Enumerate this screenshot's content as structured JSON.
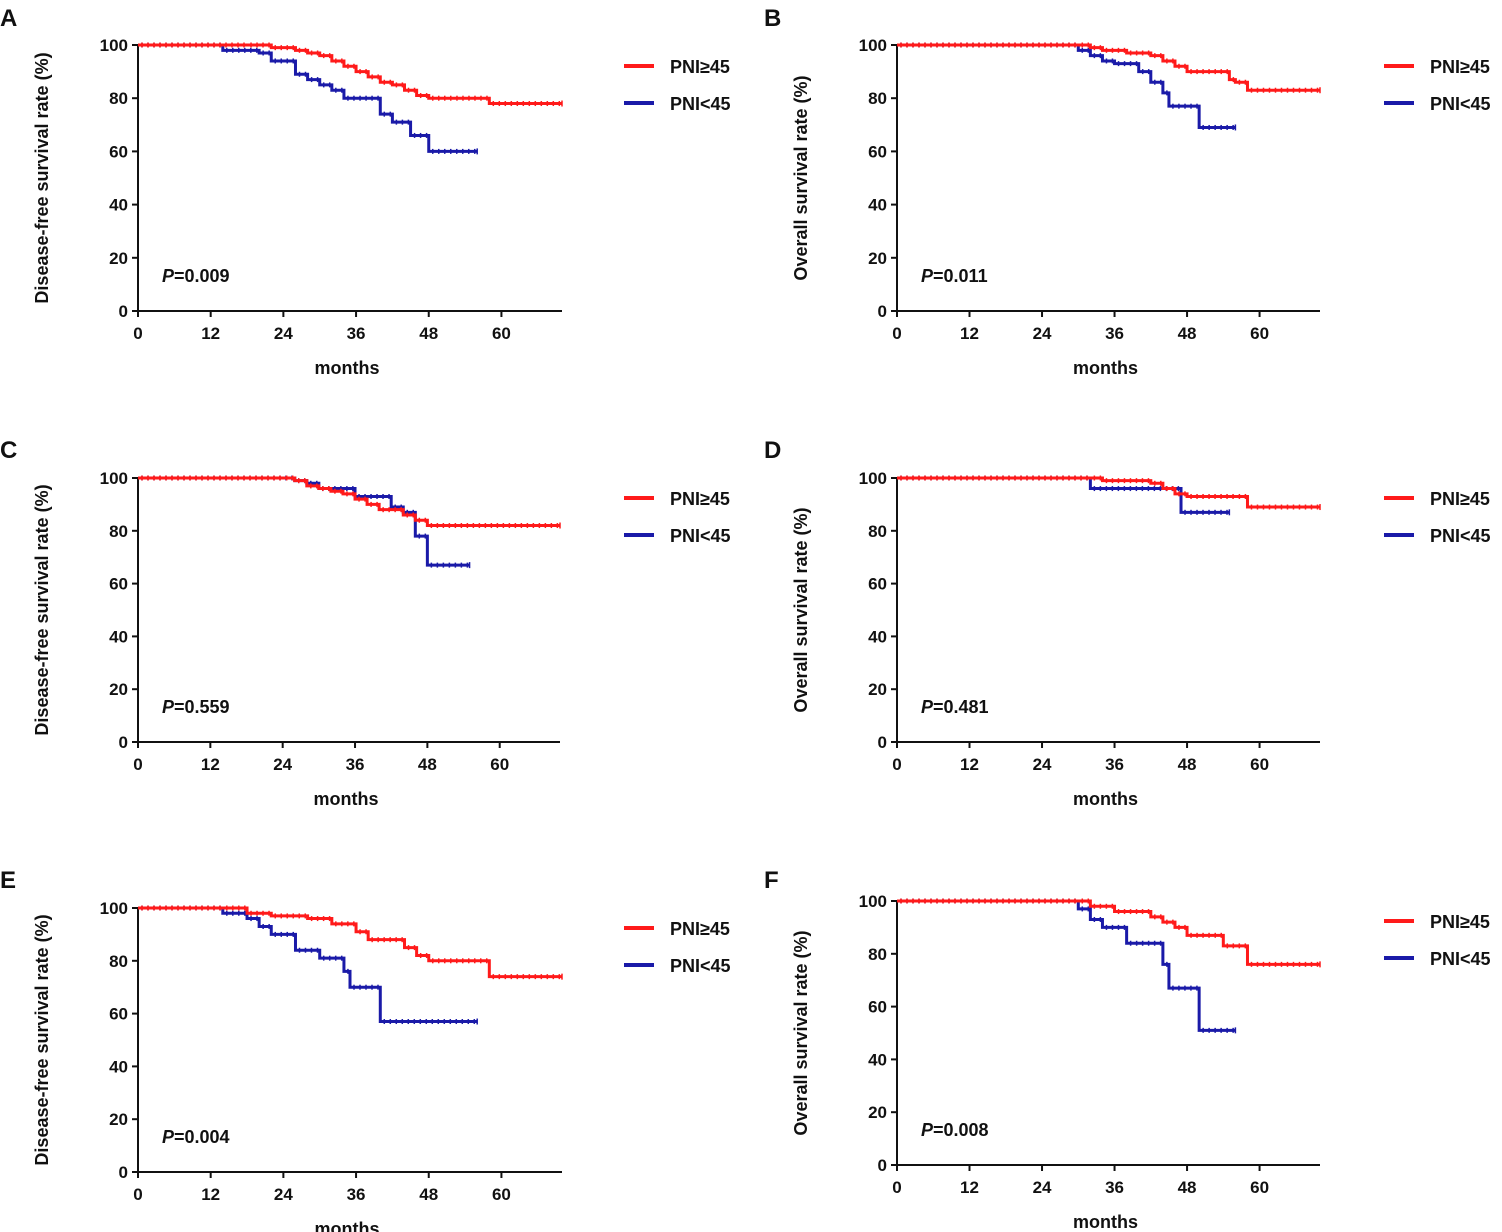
{
  "figure": {
    "panels": [
      "A",
      "B",
      "C",
      "D",
      "E",
      "F"
    ]
  },
  "colors": {
    "high": "#ff1a1a",
    "low": "#1a1aa8",
    "axis": "#111111"
  },
  "chart_data": [
    {
      "panel": "A",
      "type": "line",
      "xlabel": "months",
      "ylabel": "Disease-free survival rate (%)",
      "xlim": [
        0,
        70
      ],
      "ylim": [
        0,
        100
      ],
      "xticks": [
        "0",
        "12",
        "24",
        "36",
        "48",
        "60"
      ],
      "yticks": [
        "0",
        "20",
        "40",
        "60",
        "80",
        "100"
      ],
      "p_value_prefix": "P",
      "p_value_text": "=0.009",
      "legend": [
        "PNI≥45",
        "PNI<45"
      ],
      "series": [
        {
          "name": "PNI≥45",
          "x": [
            0,
            18,
            22,
            26,
            28,
            30,
            32,
            34,
            36,
            38,
            40,
            42,
            44,
            46,
            48,
            52,
            58,
            70
          ],
          "y": [
            100,
            100,
            99,
            98,
            97,
            96,
            94,
            92,
            90,
            88,
            86,
            85,
            83,
            81,
            80,
            80,
            78,
            78
          ]
        },
        {
          "name": "PNI<45",
          "x": [
            0,
            14,
            20,
            22,
            26,
            28,
            30,
            32,
            34,
            36,
            40,
            42,
            45,
            48,
            56
          ],
          "y": [
            100,
            98,
            97,
            94,
            89,
            87,
            85,
            83,
            80,
            80,
            74,
            71,
            66,
            60,
            60
          ]
        }
      ]
    },
    {
      "panel": "B",
      "type": "line",
      "xlabel": "months",
      "ylabel": "Overall survival rate (%)",
      "xlim": [
        0,
        70
      ],
      "ylim": [
        0,
        100
      ],
      "xticks": [
        "0",
        "12",
        "24",
        "36",
        "48",
        "60"
      ],
      "yticks": [
        "0",
        "20",
        "40",
        "60",
        "80",
        "100"
      ],
      "p_value_prefix": "P",
      "p_value_text": "=0.011",
      "legend": [
        "PNI≥45",
        "PNI<45"
      ],
      "series": [
        {
          "name": "PNI≥45",
          "x": [
            0,
            30,
            32,
            34,
            38,
            42,
            44,
            46,
            48,
            52,
            55,
            56,
            58,
            70
          ],
          "y": [
            100,
            100,
            99,
            98,
            97,
            96,
            94,
            92,
            90,
            90,
            87,
            86,
            83,
            83
          ]
        },
        {
          "name": "PNI<45",
          "x": [
            0,
            30,
            32,
            34,
            36,
            40,
            42,
            44,
            45,
            47,
            50,
            56
          ],
          "y": [
            100,
            98,
            96,
            94,
            93,
            90,
            86,
            82,
            77,
            77,
            69,
            69
          ]
        }
      ]
    },
    {
      "panel": "C",
      "type": "line",
      "xlabel": "months",
      "ylabel": "Disease-free survival rate (%)",
      "xlim": [
        0,
        70
      ],
      "ylim": [
        0,
        100
      ],
      "xticks": [
        "0",
        "12",
        "24",
        "36",
        "48",
        "60"
      ],
      "yticks": [
        "0",
        "20",
        "40",
        "60",
        "80",
        "100"
      ],
      "p_value_prefix": "P",
      "p_value_text": "=0.559",
      "legend": [
        "PNI≥45",
        "PNI<45"
      ],
      "series": [
        {
          "name": "PNI≥45",
          "x": [
            0,
            24,
            26,
            28,
            30,
            32,
            34,
            36,
            38,
            40,
            44,
            46,
            48,
            70
          ],
          "y": [
            100,
            100,
            99,
            97,
            96,
            95,
            94,
            92,
            90,
            88,
            86,
            84,
            82,
            82
          ]
        },
        {
          "name": "PNI<45",
          "x": [
            0,
            26,
            28,
            30,
            36,
            42,
            44,
            46,
            48,
            55
          ],
          "y": [
            100,
            99,
            98,
            96,
            93,
            89,
            87,
            78,
            67,
            67
          ]
        }
      ]
    },
    {
      "panel": "D",
      "type": "line",
      "xlabel": "months",
      "ylabel": "Overall survival rate (%)",
      "xlim": [
        0,
        70
      ],
      "ylim": [
        0,
        100
      ],
      "xticks": [
        "0",
        "12",
        "24",
        "36",
        "48",
        "60"
      ],
      "yticks": [
        "0",
        "20",
        "40",
        "60",
        "80",
        "100"
      ],
      "p_value_prefix": "P",
      "p_value_text": "=0.481",
      "legend": [
        "PNI≥45",
        "PNI<45"
      ],
      "series": [
        {
          "name": "PNI≥45",
          "x": [
            0,
            32,
            34,
            42,
            44,
            46,
            48,
            56,
            58,
            70
          ],
          "y": [
            100,
            100,
            99,
            98,
            96,
            94,
            93,
            93,
            89,
            89
          ]
        },
        {
          "name": "PNI<45",
          "x": [
            0,
            32,
            47,
            55
          ],
          "y": [
            100,
            96,
            87,
            87
          ]
        }
      ]
    },
    {
      "panel": "E",
      "type": "line",
      "xlabel": "months",
      "ylabel": "Disease-free survival rate (%)",
      "xlim": [
        0,
        70
      ],
      "ylim": [
        0,
        100
      ],
      "xticks": [
        "0",
        "12",
        "24",
        "36",
        "48",
        "60"
      ],
      "yticks": [
        "0",
        "20",
        "40",
        "60",
        "80",
        "100"
      ],
      "p_value_prefix": "P",
      "p_value_text": "=0.004",
      "legend": [
        "PNI≥45",
        "PNI<45"
      ],
      "series": [
        {
          "name": "PNI≥45",
          "x": [
            0,
            14,
            18,
            22,
            28,
            32,
            36,
            38,
            44,
            46,
            48,
            58,
            70
          ],
          "y": [
            100,
            100,
            98,
            97,
            96,
            94,
            91,
            88,
            85,
            82,
            80,
            74,
            74
          ]
        },
        {
          "name": "PNI<45",
          "x": [
            0,
            14,
            18,
            20,
            22,
            26,
            30,
            34,
            35,
            40,
            56
          ],
          "y": [
            100,
            98,
            96,
            93,
            90,
            84,
            81,
            76,
            70,
            57,
            57
          ]
        }
      ]
    },
    {
      "panel": "F",
      "type": "line",
      "xlabel": "months",
      "ylabel": "Overall survival rate (%)",
      "xlim": [
        0,
        70
      ],
      "ylim": [
        0,
        100
      ],
      "xticks": [
        "0",
        "12",
        "24",
        "36",
        "48",
        "60"
      ],
      "yticks": [
        "0",
        "20",
        "40",
        "60",
        "80",
        "100"
      ],
      "p_value_prefix": "P",
      "p_value_text": "=0.008",
      "legend": [
        "PNI≥45",
        "PNI<45"
      ],
      "series": [
        {
          "name": "PNI≥45",
          "x": [
            0,
            30,
            32,
            36,
            42,
            44,
            46,
            48,
            52,
            54,
            58,
            70
          ],
          "y": [
            100,
            100,
            98,
            96,
            94,
            92,
            90,
            87,
            87,
            83,
            76,
            76
          ]
        },
        {
          "name": "PNI<45",
          "x": [
            0,
            30,
            32,
            34,
            38,
            44,
            45,
            50,
            56
          ],
          "y": [
            100,
            97,
            93,
            90,
            84,
            76,
            67,
            51,
            51
          ]
        }
      ]
    }
  ]
}
